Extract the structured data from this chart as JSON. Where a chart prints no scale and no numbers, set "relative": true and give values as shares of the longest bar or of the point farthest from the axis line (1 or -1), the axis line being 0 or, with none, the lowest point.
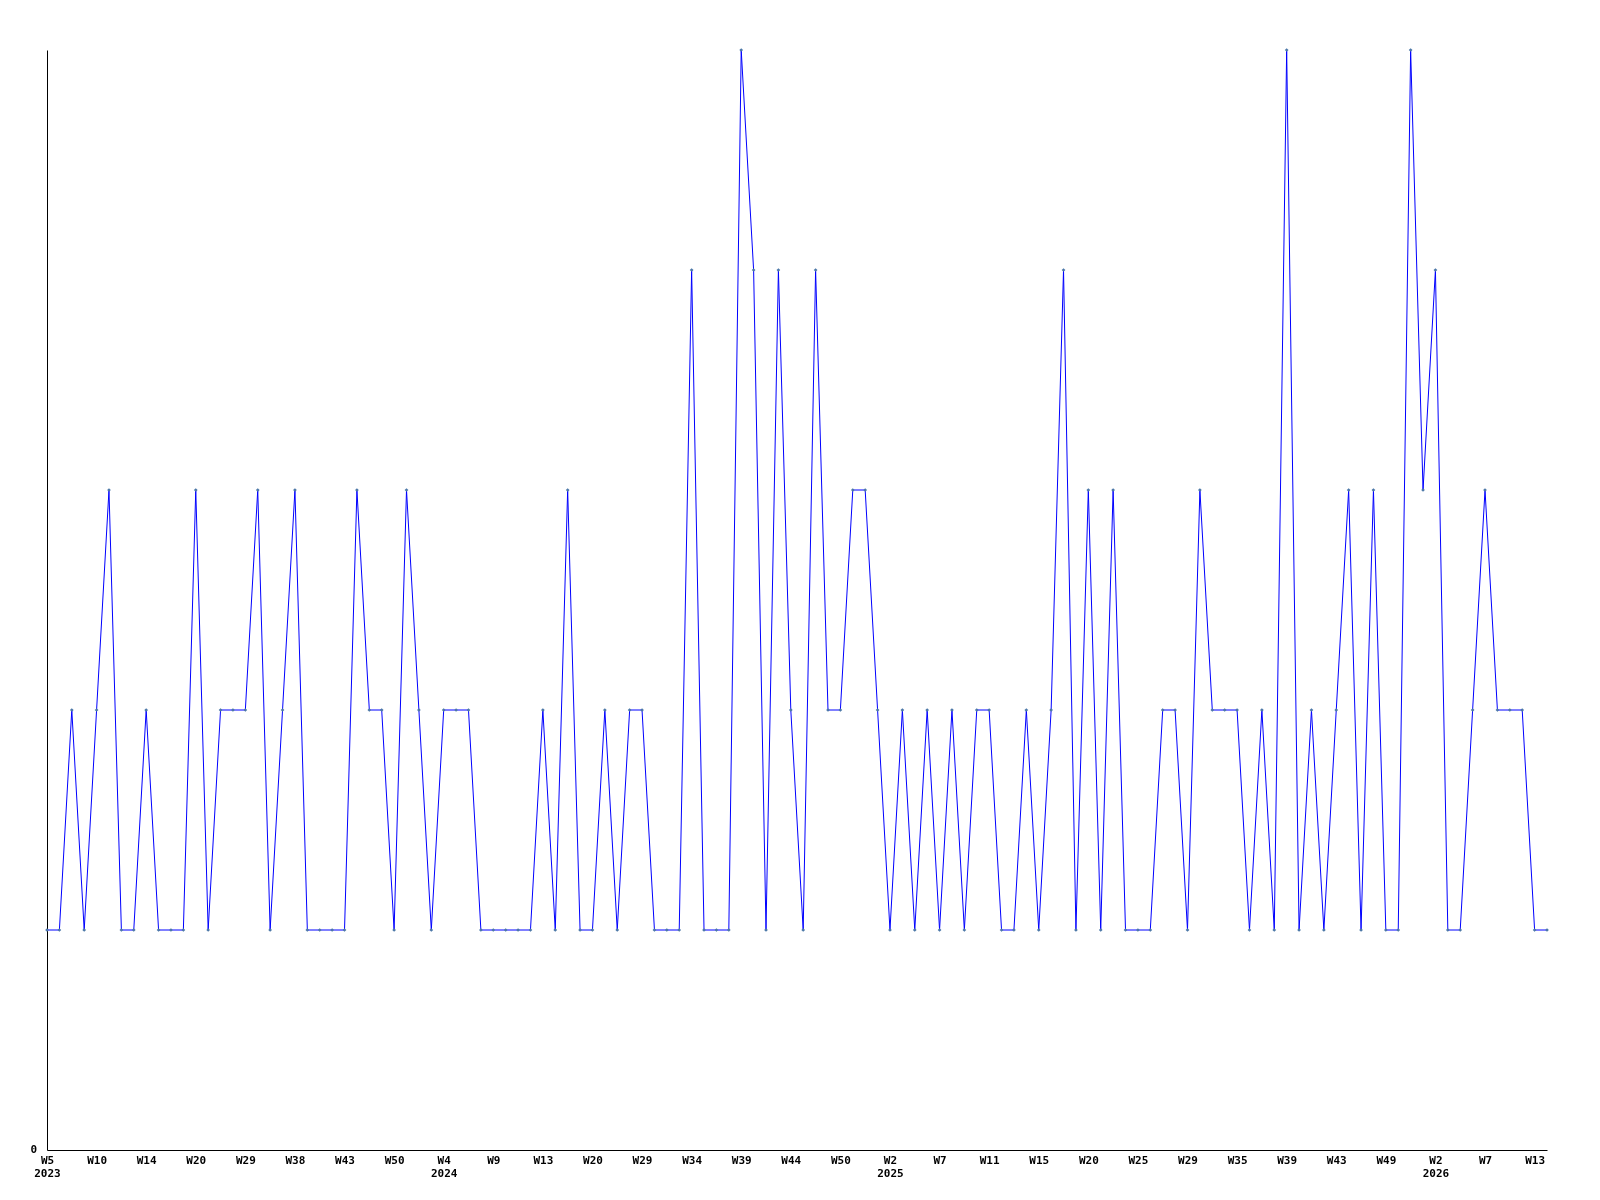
{
  "chart_data": {
    "type": "line",
    "relative": true,
    "color": "#0000ff",
    "marker": "diamond",
    "annotations": [
      "0"
    ],
    "categories": [
      "W5\n2023",
      null,
      null,
      null,
      "W10",
      null,
      null,
      null,
      "W14",
      null,
      null,
      null,
      "W20",
      null,
      null,
      null,
      "W29",
      null,
      null,
      null,
      "W38",
      null,
      null,
      null,
      "W43",
      null,
      null,
      null,
      "W50",
      null,
      null,
      null,
      "W4\n2024",
      null,
      null,
      null,
      "W9",
      null,
      null,
      null,
      "W13",
      null,
      null,
      null,
      "W20",
      null,
      null,
      null,
      "W29",
      null,
      null,
      null,
      "W34",
      null,
      null,
      null,
      "W39",
      null,
      null,
      null,
      "W44",
      null,
      null,
      null,
      "W50",
      null,
      null,
      null,
      "W2\n2025",
      null,
      null,
      null,
      "W7",
      null,
      null,
      null,
      "W11",
      null,
      null,
      null,
      "W15",
      null,
      null,
      null,
      "W20",
      null,
      null,
      null,
      "W25",
      null,
      null,
      null,
      "W29",
      null,
      null,
      null,
      "W35",
      null,
      null,
      null,
      "W39",
      null,
      null,
      null,
      "W43",
      null,
      null,
      null,
      "W49",
      null,
      null,
      null,
      "W2\n2026",
      null,
      null,
      null,
      "W7",
      null,
      null,
      null,
      "W13",
      null
    ],
    "values": [
      0.2,
      0.2,
      0.4,
      0.2,
      0.4,
      0.6,
      0.2,
      0.2,
      0.4,
      0.2,
      0.2,
      0.2,
      0.6,
      0.2,
      0.4,
      0.4,
      0.4,
      0.6,
      0.2,
      0.4,
      0.6,
      0.2,
      0.2,
      0.2,
      0.2,
      0.6,
      0.4,
      0.4,
      0.2,
      0.6,
      0.4,
      0.2,
      0.4,
      0.4,
      0.4,
      0.2,
      0.2,
      0.2,
      0.2,
      0.2,
      0.4,
      0.2,
      0.6,
      0.2,
      0.2,
      0.4,
      0.2,
      0.4,
      0.4,
      0.2,
      0.2,
      0.2,
      0.8,
      0.2,
      0.2,
      0.2,
      1,
      0.8,
      0.2,
      0.8,
      0.4,
      0.2,
      0.8,
      0.4,
      0.4,
      0.6,
      0.6,
      0.4,
      0.2,
      0.4,
      0.2,
      0.4,
      0.2,
      0.4,
      0.2,
      0.4,
      0.4,
      0.2,
      0.2,
      0.4,
      0.2,
      0.4,
      0.8,
      0.2,
      0.6,
      0.2,
      0.6,
      0.2,
      0.2,
      0.2,
      0.4,
      0.4,
      0.2,
      0.6,
      0.4,
      0.4,
      0.4,
      0.2,
      0.4,
      0.2,
      1,
      0.2,
      0.4,
      0.2,
      0.4,
      0.6,
      0.2,
      0.6,
      0.2,
      0.2,
      1,
      0.6,
      0.8,
      0.2,
      0.2,
      0.4,
      0.6,
      0.4,
      0.4,
      0.4,
      0.2,
      0.2
    ]
  }
}
